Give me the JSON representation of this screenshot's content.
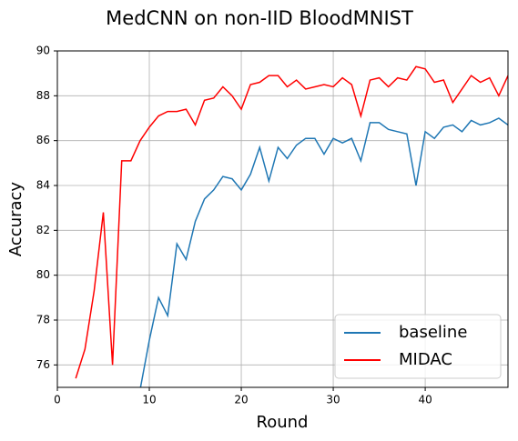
{
  "chart_data": {
    "type": "line",
    "title": "MedCNN on non-IID BloodMNIST",
    "x_label": "Round",
    "y_label": "Accuracy",
    "x": [
      0,
      1,
      2,
      3,
      4,
      5,
      6,
      7,
      8,
      9,
      10,
      11,
      12,
      13,
      14,
      15,
      16,
      17,
      18,
      19,
      20,
      21,
      22,
      23,
      24,
      25,
      26,
      27,
      28,
      29,
      30,
      31,
      32,
      33,
      34,
      35,
      36,
      37,
      38,
      39,
      40,
      41,
      42,
      43,
      44,
      45,
      46,
      47,
      48,
      49
    ],
    "series": [
      {
        "name": "baseline",
        "color": "#1f77b4",
        "values": [
          null,
          null,
          null,
          null,
          null,
          null,
          null,
          null,
          null,
          74.9,
          77.1,
          79.0,
          78.2,
          81.4,
          80.7,
          82.4,
          83.4,
          83.8,
          84.4,
          84.3,
          83.8,
          84.5,
          85.7,
          84.2,
          85.7,
          85.2,
          85.8,
          86.1,
          86.1,
          85.4,
          86.1,
          85.9,
          86.1,
          85.1,
          86.8,
          86.8,
          86.5,
          86.4,
          86.3,
          84.0,
          86.4,
          86.1,
          86.6,
          86.7,
          86.4,
          86.9,
          86.7,
          86.8,
          87.0,
          86.7
        ]
      },
      {
        "name": "MIDAC",
        "color": "#ff0000",
        "values": [
          null,
          null,
          75.4,
          76.7,
          79.3,
          82.8,
          76.0,
          85.1,
          85.1,
          86.0,
          86.6,
          87.1,
          87.3,
          87.3,
          87.4,
          86.7,
          87.8,
          87.9,
          88.4,
          88.0,
          87.4,
          88.5,
          88.6,
          88.9,
          88.9,
          88.4,
          88.7,
          88.3,
          88.4,
          88.5,
          88.4,
          88.8,
          88.5,
          87.1,
          88.7,
          88.8,
          88.4,
          88.8,
          88.7,
          89.3,
          89.2,
          88.6,
          88.7,
          87.7,
          88.3,
          88.9,
          88.6,
          88.8,
          88.0,
          88.9
        ]
      }
    ],
    "xlim": [
      0,
      49
    ],
    "ylim": [
      75,
      90
    ],
    "xticks": [
      0,
      10,
      20,
      30,
      40
    ],
    "yticks": [
      76,
      78,
      80,
      82,
      84,
      86,
      88,
      90
    ],
    "grid": true,
    "legend": "lower right"
  }
}
